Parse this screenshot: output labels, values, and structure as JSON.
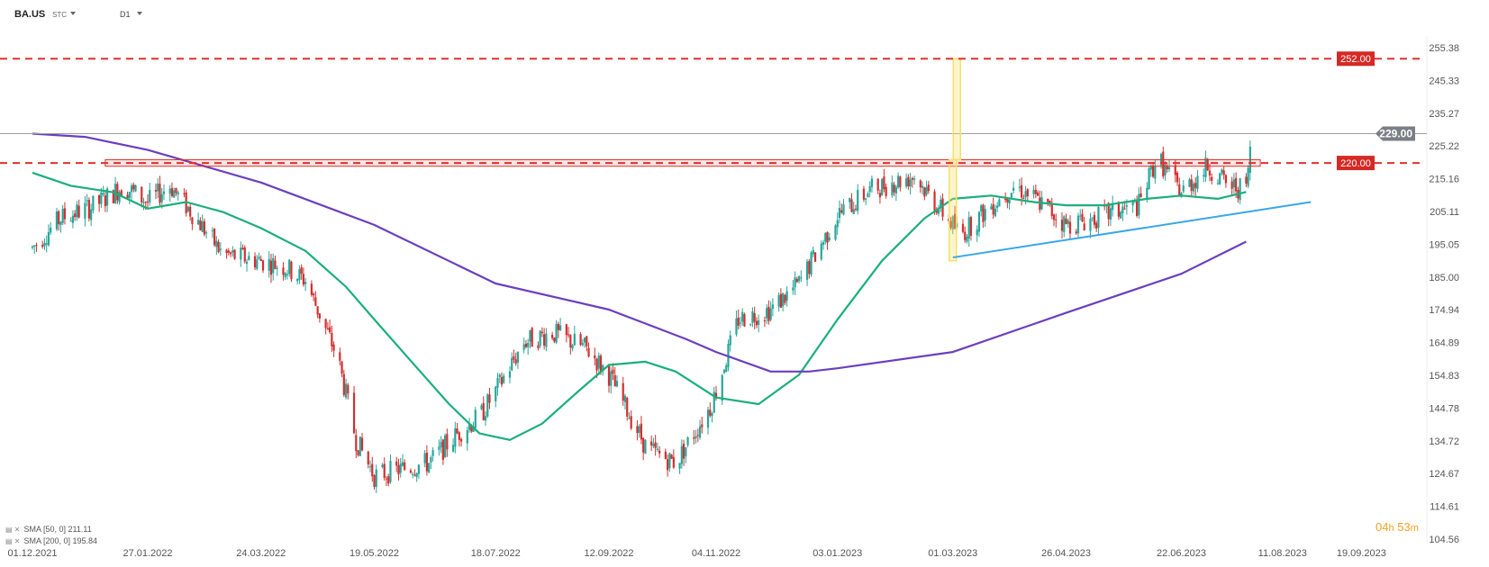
{
  "header": {
    "symbol": "BA.US",
    "symbol_type": "STC",
    "timeframe": "D1"
  },
  "legend": [
    {
      "label": "SMA [50, 0] 211.11"
    },
    {
      "label": "SMA [200, 0] 195.84"
    }
  ],
  "timer": {
    "hours": "04",
    "h": "h",
    "minutes": "53",
    "m": "m"
  },
  "colors": {
    "up": "#26a69a",
    "down": "#d32f2f",
    "sma50": "#1aaf7a",
    "sma200": "#6a3fbf",
    "level": "#e0302a",
    "trendline": "#3aa6e8",
    "highlight": "#f5e06a"
  },
  "chart_data": {
    "type": "candlestick",
    "ylim": [
      104.56,
      255.38
    ],
    "y_ticks": [
      "255.38",
      "245.33",
      "235.27",
      "225.22",
      "215.16",
      "205.11",
      "195.05",
      "185.00",
      "174.94",
      "164.89",
      "154.83",
      "144.78",
      "134.72",
      "124.67",
      "114.61",
      "104.56"
    ],
    "x_ticks": [
      "01.12.2021",
      "27.01.2022",
      "24.03.2022",
      "19.05.2022",
      "18.07.2022",
      "12.09.2022",
      "04.11.2022",
      "03.01.2023",
      "01.03.2023",
      "26.04.2023",
      "22.06.2023",
      "11.08.2023",
      "19.09.2023"
    ],
    "last_price": {
      "value": 229.0,
      "label": "229.00"
    },
    "levels": [
      {
        "value": 252.0,
        "label": "252.00",
        "style": "dashed"
      },
      {
        "value": 220.0,
        "label": "220.00",
        "style": "dashed"
      }
    ],
    "resistance_zone": {
      "from": 219.0,
      "to": 221.0,
      "start": "06.01.2022",
      "end": "31.07.2023"
    },
    "highlight_bar": {
      "date": "03.03.2023",
      "low": 221.0,
      "high": 252.0
    },
    "highlight_bar2": {
      "date": "01.03.2023",
      "low": 190.0,
      "high": 221.0
    },
    "trendline": {
      "points": [
        [
          "01.03.2023",
          191.0
        ],
        [
          "25.08.2023",
          208.0
        ]
      ]
    },
    "series": [
      {
        "name": "SMA [50, 0]",
        "type": "line",
        "points": [
          [
            "01.12.2021",
            217
          ],
          [
            "20.12.2021",
            213
          ],
          [
            "10.01.2022",
            211
          ],
          [
            "27.01.2022",
            206
          ],
          [
            "15.02.2022",
            208
          ],
          [
            "05.03.2022",
            205
          ],
          [
            "24.03.2022",
            200
          ],
          [
            "15.04.2022",
            193
          ],
          [
            "05.05.2022",
            182
          ],
          [
            "19.05.2022",
            172
          ],
          [
            "05.06.2022",
            160
          ],
          [
            "25.06.2022",
            146
          ],
          [
            "10.07.2022",
            137
          ],
          [
            "25.07.2022",
            135
          ],
          [
            "10.08.2022",
            140
          ],
          [
            "28.08.2022",
            150
          ],
          [
            "12.09.2022",
            158
          ],
          [
            "30.09.2022",
            159
          ],
          [
            "15.10.2022",
            156
          ],
          [
            "04.11.2022",
            148
          ],
          [
            "25.11.2022",
            146
          ],
          [
            "15.12.2022",
            155
          ],
          [
            "03.01.2023",
            172
          ],
          [
            "25.01.2023",
            190
          ],
          [
            "15.02.2023",
            203
          ],
          [
            "01.03.2023",
            209
          ],
          [
            "20.03.2023",
            210
          ],
          [
            "10.04.2023",
            208
          ],
          [
            "26.04.2023",
            207
          ],
          [
            "15.05.2023",
            207
          ],
          [
            "05.06.2023",
            209
          ],
          [
            "22.06.2023",
            210
          ],
          [
            "10.07.2023",
            209
          ],
          [
            "24.07.2023",
            211.1
          ]
        ]
      },
      {
        "name": "SMA [200, 0]",
        "type": "line",
        "points": [
          [
            "01.12.2021",
            229
          ],
          [
            "27.12.2021",
            228
          ],
          [
            "27.01.2022",
            224
          ],
          [
            "24.02.2022",
            219
          ],
          [
            "24.03.2022",
            214
          ],
          [
            "19.05.2022",
            201
          ],
          [
            "18.07.2022",
            183
          ],
          [
            "12.09.2022",
            175
          ],
          [
            "20.10.2022",
            166
          ],
          [
            "04.11.2022",
            162
          ],
          [
            "01.12.2022",
            156
          ],
          [
            "20.12.2022",
            156
          ],
          [
            "03.01.2023",
            157
          ],
          [
            "01.03.2023",
            162
          ],
          [
            "26.04.2023",
            174
          ],
          [
            "22.06.2023",
            186
          ],
          [
            "24.07.2023",
            195.84
          ]
        ]
      }
    ],
    "candles": {
      "anchors": [
        [
          "01.12.2021",
          194
        ],
        [
          "15.12.2021",
          203
        ],
        [
          "01.01.2022",
          207
        ],
        [
          "15.01.2022",
          213
        ],
        [
          "27.01.2022",
          208
        ],
        [
          "07.02.2022",
          213
        ],
        [
          "20.02.2022",
          203
        ],
        [
          "05.03.2022",
          192
        ],
        [
          "24.03.2022",
          190
        ],
        [
          "05.04.2022",
          188
        ],
        [
          "15.04.2022",
          184
        ],
        [
          "01.05.2022",
          160
        ],
        [
          "10.05.2022",
          135
        ],
        [
          "19.05.2022",
          124
        ],
        [
          "01.06.2022",
          126
        ],
        [
          "15.06.2022",
          128
        ],
        [
          "01.07.2022",
          138
        ],
        [
          "10.07.2022",
          142
        ],
        [
          "20.07.2022",
          152
        ],
        [
          "01.08.2022",
          165
        ],
        [
          "15.08.2022",
          168
        ],
        [
          "01.09.2022",
          163
        ],
        [
          "12.09.2022",
          155
        ],
        [
          "01.10.2022",
          132
        ],
        [
          "15.10.2022",
          128
        ],
        [
          "01.11.2022",
          145
        ],
        [
          "04.11.2022",
          150
        ],
        [
          "15.11.2022",
          172
        ],
        [
          "01.12.2022",
          175
        ],
        [
          "15.12.2022",
          183
        ],
        [
          "03.01.2023",
          204
        ],
        [
          "20.01.2023",
          212
        ],
        [
          "10.02.2023",
          216
        ],
        [
          "20.02.2023",
          208
        ],
        [
          "01.03.2023",
          201
        ],
        [
          "05.03.2023",
          198
        ],
        [
          "20.03.2023",
          207
        ],
        [
          "01.04.2023",
          213
        ],
        [
          "15.04.2023",
          207
        ],
        [
          "26.04.2023",
          201
        ],
        [
          "10.05.2023",
          203
        ],
        [
          "01.06.2023",
          207
        ],
        [
          "10.06.2023",
          222
        ],
        [
          "15.06.2023",
          217
        ],
        [
          "22.06.2023",
          211
        ],
        [
          "05.07.2023",
          219
        ],
        [
          "15.07.2023",
          213
        ],
        [
          "24.07.2023",
          212
        ],
        [
          "26.07.2023",
          225
        ]
      ]
    }
  }
}
